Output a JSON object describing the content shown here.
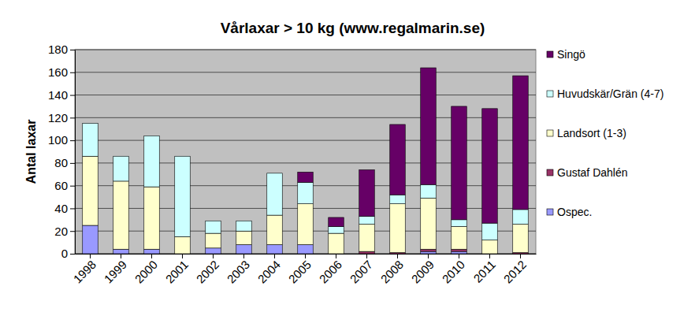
{
  "chart_data": {
    "type": "bar",
    "title": "Vårlaxar > 10 kg (www.regalmarin.se)",
    "y_label": "Antal laxar",
    "categories": [
      "1998",
      "1999",
      "2000",
      "2001",
      "2002",
      "2003",
      "2004",
      "2005",
      "2006",
      "2007",
      "2008",
      "2009",
      "2010",
      "2011",
      "2012"
    ],
    "series": [
      {
        "name": "Ospec.",
        "color": "#9999ff",
        "values": [
          25,
          4,
          4,
          0,
          5,
          8,
          8,
          8,
          0,
          0,
          0,
          2,
          2,
          0,
          0
        ]
      },
      {
        "name": "Gustaf Dahlén",
        "color": "#993366",
        "values": [
          0,
          0,
          0,
          0,
          0,
          0,
          0,
          0,
          0,
          2,
          1,
          2,
          2,
          0,
          1
        ]
      },
      {
        "name": "Landsort (1-3)",
        "color": "#ffffcc",
        "values": [
          61,
          60,
          55,
          15,
          13,
          12,
          26,
          36,
          18,
          24,
          43,
          45,
          20,
          12,
          25
        ]
      },
      {
        "name": "Huvudskär/Grän (4-7)",
        "color": "#ccffff",
        "values": [
          29,
          22,
          45,
          71,
          11,
          9,
          37,
          19,
          6,
          7,
          8,
          12,
          6,
          15,
          13
        ]
      },
      {
        "name": "Singö",
        "color": "#660066",
        "values": [
          0,
          0,
          0,
          0,
          0,
          0,
          0,
          9,
          8,
          41,
          62,
          103,
          100,
          101,
          118
        ]
      }
    ],
    "ylim": [
      0,
      180
    ],
    "yticks": [
      0,
      20,
      40,
      60,
      80,
      100,
      120,
      140,
      160,
      180
    ],
    "stacked": true,
    "grid": true,
    "legend": "right"
  }
}
